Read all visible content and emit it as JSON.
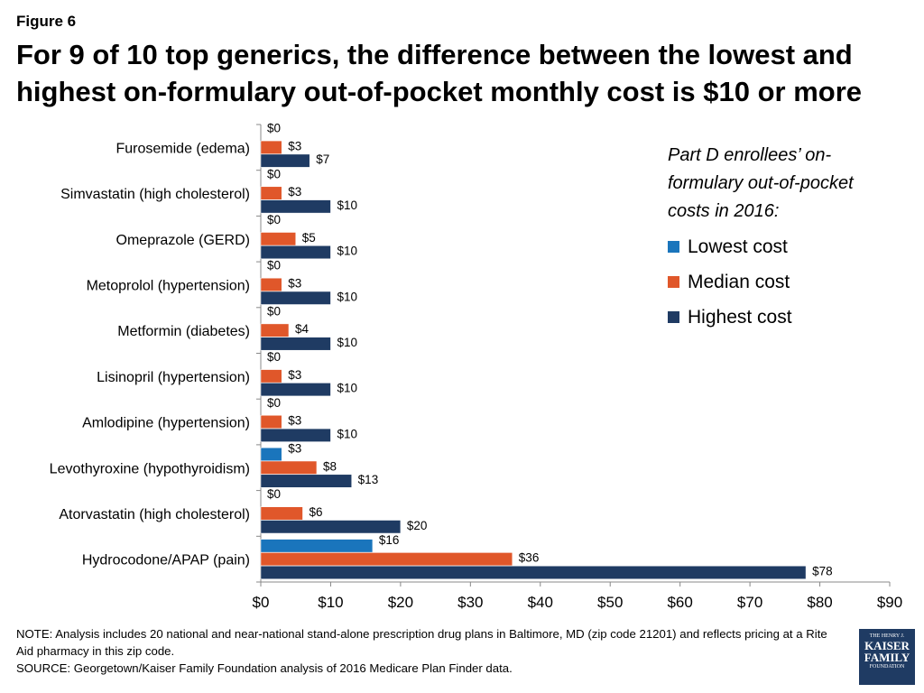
{
  "figure_label": "Figure 6",
  "title": "For 9 of 10 top generics, the difference between the lowest and highest on-formulary out-of-pocket monthly cost is $10 or more",
  "legend": {
    "title": "Part D enrollees’ on-formulary out-of-pocket costs in 2016:",
    "position": "right"
  },
  "note": "NOTE: Analysis includes 20 national and near-national stand-alone prescription drug plans in Baltimore, MD (zip code 21201) and reflects pricing at a Rite Aid pharmacy in this zip code.",
  "source": "SOURCE: Georgetown/Kaiser Family Foundation analysis of 2016 Medicare Plan Finder data.",
  "logo": {
    "line1": "THE HENRY J.",
    "line2": "KAISER",
    "line3": "FAMILY",
    "line4": "FOUNDATION"
  },
  "chart_data": {
    "type": "bar",
    "orientation": "horizontal",
    "categories": [
      "Furosemide (edema)",
      "Simvastatin (high cholesterol)",
      "Omeprazole (GERD)",
      "Metoprolol (hypertension)",
      "Metformin (diabetes)",
      "Lisinopril (hypertension)",
      "Amlodipine (hypertension)",
      "Levothyroxine (hypothyroidism)",
      "Atorvastatin (high cholesterol)",
      "Hydrocodone/APAP (pain)"
    ],
    "series": [
      {
        "name": "Lowest cost",
        "color": "#1a75bc",
        "values": [
          0,
          0,
          0,
          0,
          0,
          0,
          0,
          3,
          0,
          16
        ]
      },
      {
        "name": "Median cost",
        "color": "#e0572a",
        "values": [
          3,
          3,
          5,
          3,
          4,
          3,
          3,
          8,
          6,
          36
        ]
      },
      {
        "name": "Highest cost",
        "color": "#1f3b63",
        "values": [
          7,
          10,
          10,
          10,
          10,
          10,
          10,
          13,
          20,
          78
        ]
      }
    ],
    "xlim": [
      0,
      90
    ],
    "xticks": [
      0,
      10,
      20,
      30,
      40,
      50,
      60,
      70,
      80,
      90
    ],
    "tick_prefix": "$",
    "value_prefix": "$",
    "grid": false
  }
}
